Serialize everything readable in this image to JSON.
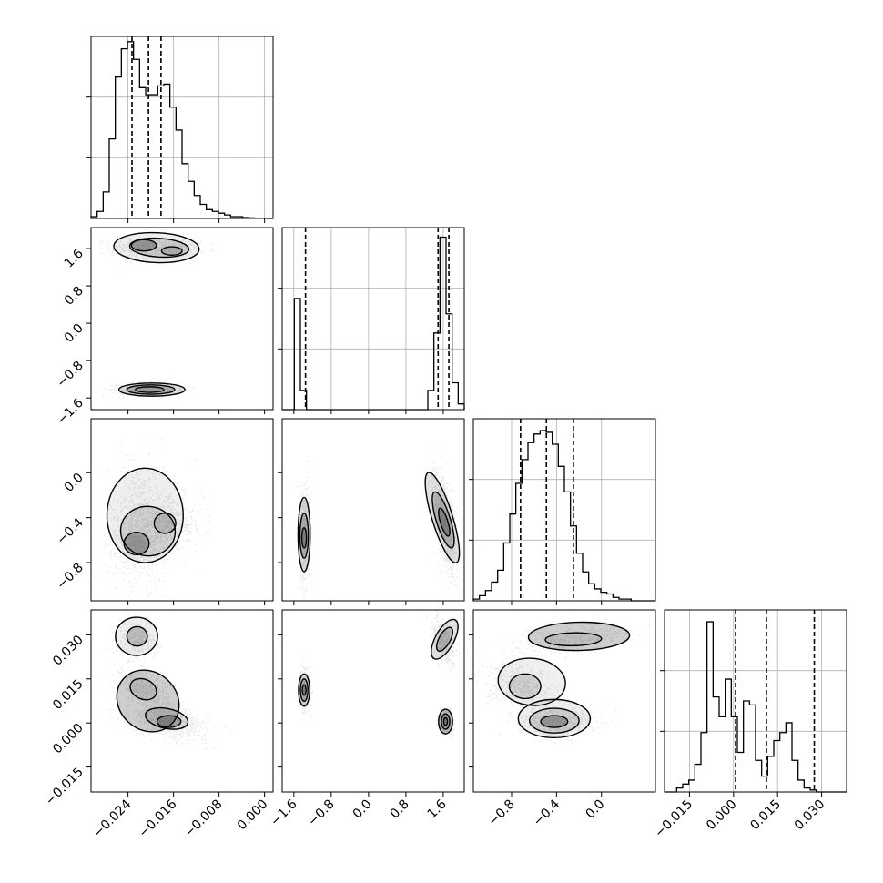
{
  "chart_data": {
    "type": "corner",
    "variables": [
      {
        "id": "p0",
        "range": [
          -0.0305,
          0.0015
        ],
        "ticks": [
          -0.024,
          -0.016,
          -0.008,
          0.0
        ],
        "tick_labels": [
          "−0.024",
          "−0.016",
          "−0.008",
          "0.000"
        ],
        "quantiles": [
          -0.0233,
          -0.0204,
          -0.0182
        ],
        "hist": [
          0.01,
          0.04,
          0.15,
          0.45,
          0.8,
          0.96,
          1.0,
          0.9,
          0.74,
          0.7,
          0.7,
          0.75,
          0.76,
          0.63,
          0.5,
          0.31,
          0.21,
          0.13,
          0.08,
          0.05,
          0.04,
          0.03,
          0.02,
          0.01,
          0.01,
          0.005,
          0.003,
          0.002,
          0.001,
          0.0
        ],
        "histmax": 1.03
      },
      {
        "id": "p1",
        "range": [
          -1.85,
          2.05
        ],
        "ticks": [
          -1.6,
          -0.8,
          0.0,
          0.8,
          1.6
        ],
        "tick_labels": [
          "−1.6",
          "−0.8",
          "0.0",
          "0.8",
          "1.6"
        ],
        "quantiles": [
          -1.35,
          1.49,
          1.72
        ],
        "hist": [
          0,
          0,
          0.58,
          0.1,
          0,
          0,
          0,
          0,
          0,
          0,
          0,
          0,
          0,
          0,
          0,
          0,
          0,
          0,
          0,
          0,
          0,
          0,
          0,
          0,
          0.1,
          0.4,
          0.9,
          0.5,
          0.14,
          0.03
        ],
        "histmax": 0.95
      },
      {
        "id": "p2",
        "range": [
          -1.14,
          0.48
        ],
        "ticks": [
          -0.8,
          -0.4,
          0.0
        ],
        "tick_labels": [
          "−0.8",
          "−0.4",
          "0.0"
        ],
        "quantiles": [
          -0.72,
          -0.49,
          -0.25
        ],
        "hist": [
          0.01,
          0.03,
          0.06,
          0.11,
          0.18,
          0.34,
          0.51,
          0.69,
          0.83,
          0.93,
          0.98,
          1.0,
          0.99,
          0.92,
          0.79,
          0.64,
          0.44,
          0.28,
          0.17,
          0.1,
          0.07,
          0.05,
          0.04,
          0.02,
          0.01,
          0.01,
          0.0,
          0.0,
          0.0,
          0.0
        ],
        "histmax": 1.07
      },
      {
        "id": "p3",
        "range": [
          -0.0235,
          0.0385
        ],
        "ticks": [
          -0.015,
          0.0,
          0.015,
          0.03
        ],
        "tick_labels": [
          "−0.015",
          "0.000",
          "0.015",
          "0.030"
        ],
        "quantiles": [
          0.0007,
          0.0112,
          0.0275
        ],
        "hist": [
          0.0,
          0.0,
          0.02,
          0.04,
          0.06,
          0.14,
          0.3,
          0.86,
          0.48,
          0.38,
          0.57,
          0.38,
          0.2,
          0.46,
          0.44,
          0.16,
          0.08,
          0.18,
          0.26,
          0.3,
          0.35,
          0.16,
          0.06,
          0.02,
          0.01,
          0.0,
          0.0,
          0.0,
          0.0,
          0.0
        ],
        "histmax": 0.92
      }
    ],
    "pairs": [
      {
        "id": "p1_vs_p0",
        "x": 0,
        "y": 1,
        "blobs": [
          {
            "cx": -0.0215,
            "cy": 1.62,
            "sx": 0.0029,
            "sy": 0.13,
            "rho": 0.0,
            "w": 0.28
          },
          {
            "cx": -0.0165,
            "cy": 1.58,
            "sx": 0.0024,
            "sy": 0.09,
            "rho": 0.0,
            "w": 0.25
          },
          {
            "cx": -0.0205,
            "cy": -1.4,
            "sx": 0.0025,
            "sy": 0.07,
            "rho": 0.0,
            "w": 0.47
          }
        ],
        "contours": [
          {
            "cx": -0.019,
            "cy": 1.62,
            "rx": 0.0075,
            "ry": 0.32,
            "rot": -0.04
          },
          {
            "cx": -0.0185,
            "cy": 1.62,
            "rx": 0.0052,
            "ry": 0.2,
            "rot": -0.06
          },
          {
            "cx": -0.0212,
            "cy": 1.67,
            "rx": 0.0022,
            "ry": 0.12,
            "rot": 0.0
          },
          {
            "cx": -0.0163,
            "cy": 1.55,
            "rx": 0.0018,
            "ry": 0.09,
            "rot": 0.0
          },
          {
            "cx": -0.0198,
            "cy": -1.42,
            "rx": 0.0058,
            "ry": 0.14,
            "rot": 0.0
          },
          {
            "cx": -0.02,
            "cy": -1.42,
            "rx": 0.0042,
            "ry": 0.1,
            "rot": 0.0
          },
          {
            "cx": -0.0202,
            "cy": -1.42,
            "rx": 0.0025,
            "ry": 0.06,
            "rot": 0.0
          }
        ]
      },
      {
        "id": "p2_vs_p0",
        "x": 0,
        "y": 2,
        "blobs": [
          {
            "cx": -0.022,
            "cy": -0.45,
            "sx": 0.0027,
            "sy": 0.26,
            "rho": 0.0,
            "w": 0.55
          },
          {
            "cx": -0.0225,
            "cy": -0.66,
            "sx": 0.0018,
            "sy": 0.09,
            "rho": 0.0,
            "w": 0.2
          },
          {
            "cx": -0.0165,
            "cy": -0.45,
            "sx": 0.0028,
            "sy": 0.12,
            "rho": 0.0,
            "w": 0.25
          }
        ],
        "contours": [
          {
            "cx": -0.021,
            "cy": -0.38,
            "rx": 0.0067,
            "ry": 0.42,
            "rot": 0.0
          },
          {
            "cx": -0.0205,
            "cy": -0.52,
            "rx": 0.0048,
            "ry": 0.22,
            "rot": -0.1
          },
          {
            "cx": -0.0225,
            "cy": -0.63,
            "rx": 0.0022,
            "ry": 0.1,
            "rot": 0.0
          },
          {
            "cx": -0.0175,
            "cy": -0.45,
            "rx": 0.0019,
            "ry": 0.09,
            "rot": 0.0
          }
        ]
      },
      {
        "id": "p3_vs_p0",
        "x": 0,
        "y": 3,
        "blobs": [
          {
            "cx": -0.0225,
            "cy": 0.028,
            "sx": 0.0016,
            "sy": 0.0032,
            "rho": 0.0,
            "w": 0.2
          },
          {
            "cx": -0.0212,
            "cy": 0.0115,
            "sx": 0.0022,
            "sy": 0.0033,
            "rho": -0.5,
            "w": 0.35
          },
          {
            "cx": -0.017,
            "cy": 0.0005,
            "sx": 0.0034,
            "sy": 0.0028,
            "rho": -0.4,
            "w": 0.45
          }
        ],
        "contours": [
          {
            "cx": -0.0225,
            "cy": 0.0295,
            "rx": 0.0037,
            "ry": 0.0065,
            "rot": 0.0
          },
          {
            "cx": -0.0224,
            "cy": 0.0295,
            "rx": 0.0018,
            "ry": 0.0033,
            "rot": 0.0
          },
          {
            "cx": -0.0205,
            "cy": 0.0075,
            "rx": 0.0058,
            "ry": 0.0098,
            "rot": -0.75
          },
          {
            "cx": -0.0213,
            "cy": 0.0115,
            "rx": 0.0024,
            "ry": 0.0034,
            "rot": -0.4
          },
          {
            "cx": -0.0172,
            "cy": 0.0015,
            "rx": 0.0038,
            "ry": 0.0034,
            "rot": -0.2
          },
          {
            "cx": -0.0168,
            "cy": 0.0005,
            "rx": 0.0021,
            "ry": 0.002,
            "rot": 0.0
          }
        ]
      },
      {
        "id": "p2_vs_p1",
        "x": 1,
        "y": 2,
        "blobs": [
          {
            "cx": -1.38,
            "cy": -0.55,
            "sx": 0.05,
            "sy": 0.2,
            "rho": 0.0,
            "w": 0.47
          },
          {
            "cx": 1.62,
            "cy": -0.42,
            "sx": 0.12,
            "sy": 0.22,
            "rho": -0.55,
            "w": 0.53
          }
        ],
        "contours": [
          {
            "cx": -1.38,
            "cy": -0.55,
            "rx": 0.13,
            "ry": 0.33,
            "rot": 0.0
          },
          {
            "cx": -1.38,
            "cy": -0.56,
            "rx": 0.09,
            "ry": 0.2,
            "rot": 0.0
          },
          {
            "cx": -1.38,
            "cy": -0.58,
            "rx": 0.05,
            "ry": 0.09,
            "rot": 0.0
          },
          {
            "cx": 1.58,
            "cy": -0.4,
            "rx": 0.22,
            "ry": 0.42,
            "rot": 0.3
          },
          {
            "cx": 1.6,
            "cy": -0.42,
            "rx": 0.15,
            "ry": 0.26,
            "rot": 0.3
          },
          {
            "cx": 1.62,
            "cy": -0.44,
            "rx": 0.08,
            "ry": 0.13,
            "rot": 0.3
          }
        ]
      },
      {
        "id": "p3_vs_p1",
        "x": 1,
        "y": 3,
        "blobs": [
          {
            "cx": -1.38,
            "cy": 0.0112,
            "sx": 0.05,
            "sy": 0.0028,
            "rho": 0.0,
            "w": 0.47
          },
          {
            "cx": 1.6,
            "cy": 0.028,
            "sx": 0.11,
            "sy": 0.004,
            "rho": -0.6,
            "w": 0.26
          },
          {
            "cx": 1.65,
            "cy": 0.0005,
            "sx": 0.07,
            "sy": 0.0018,
            "rho": 0.0,
            "w": 0.27
          }
        ],
        "contours": [
          {
            "cx": -1.38,
            "cy": 0.0112,
            "rx": 0.12,
            "ry": 0.0055,
            "rot": 0.0
          },
          {
            "cx": -1.38,
            "cy": 0.0112,
            "rx": 0.08,
            "ry": 0.0038,
            "rot": 0.0
          },
          {
            "cx": -1.38,
            "cy": 0.0112,
            "rx": 0.04,
            "ry": 0.0018,
            "rot": 0.0
          },
          {
            "cx": 1.63,
            "cy": 0.0285,
            "rx": 0.2,
            "ry": 0.0075,
            "rot": -0.5
          },
          {
            "cx": 1.63,
            "cy": 0.0285,
            "rx": 0.12,
            "ry": 0.0045,
            "rot": -0.5
          },
          {
            "cx": 1.65,
            "cy": 0.0005,
            "rx": 0.15,
            "ry": 0.0042,
            "rot": 0.0
          },
          {
            "cx": 1.65,
            "cy": 0.0005,
            "rx": 0.09,
            "ry": 0.0026,
            "rot": 0.0
          },
          {
            "cx": 1.65,
            "cy": 0.0005,
            "rx": 0.04,
            "ry": 0.0013,
            "rot": 0.0
          }
        ]
      },
      {
        "id": "p3_vs_p2",
        "x": 2,
        "y": 3,
        "blobs": [
          {
            "cx": -0.4,
            "cy": 0.0005,
            "sx": 0.16,
            "sy": 0.0025,
            "rho": 0.0,
            "w": 0.45
          },
          {
            "cx": -0.72,
            "cy": 0.012,
            "sx": 0.15,
            "sy": 0.004,
            "rho": -0.3,
            "w": 0.3
          },
          {
            "cx": -0.25,
            "cy": 0.029,
            "sx": 0.24,
            "sy": 0.0025,
            "rho": 0.5,
            "w": 0.25
          }
        ],
        "contours": [
          {
            "cx": -0.42,
            "cy": 0.0015,
            "rx": 0.32,
            "ry": 0.0065,
            "rot": 0.0
          },
          {
            "cx": -0.42,
            "cy": 0.0008,
            "rx": 0.22,
            "ry": 0.0042,
            "rot": 0.0
          },
          {
            "cx": -0.42,
            "cy": 0.0005,
            "rx": 0.12,
            "ry": 0.002,
            "rot": 0.0
          },
          {
            "cx": -0.62,
            "cy": 0.014,
            "rx": 0.3,
            "ry": 0.008,
            "rot": -0.1
          },
          {
            "cx": -0.68,
            "cy": 0.0125,
            "rx": 0.14,
            "ry": 0.0042,
            "rot": 0.0
          },
          {
            "cx": -0.2,
            "cy": 0.0295,
            "rx": 0.45,
            "ry": 0.0048,
            "rot": 0.02
          },
          {
            "cx": -0.25,
            "cy": 0.0285,
            "rx": 0.25,
            "ry": 0.0022,
            "rot": 0.02
          }
        ]
      }
    ]
  }
}
